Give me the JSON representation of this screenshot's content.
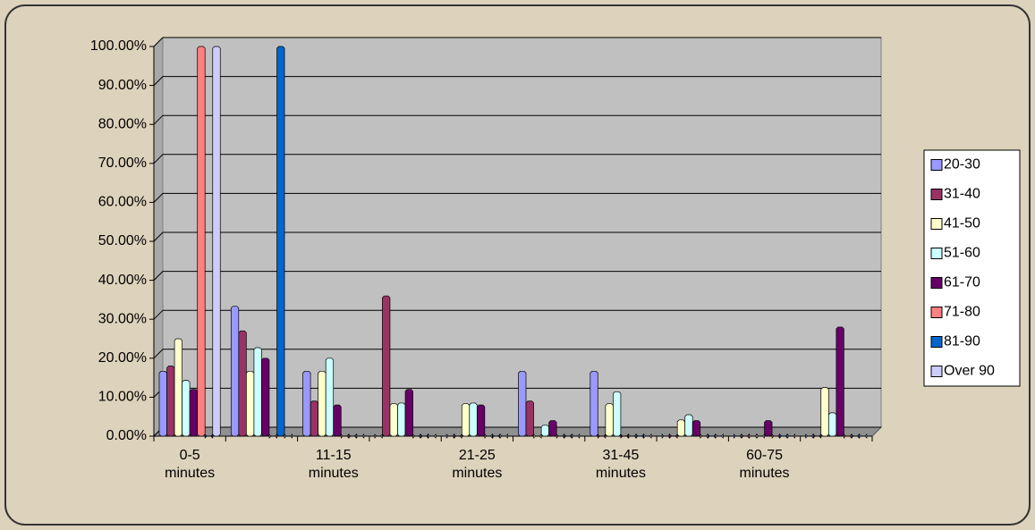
{
  "chart_data": {
    "type": "bar",
    "categories": [
      "0-5 minutes",
      null,
      "11-15 minutes",
      null,
      "21-25 minutes",
      null,
      "31-45 minutes",
      null,
      "60-75 minutes",
      null
    ],
    "series": [
      {
        "name": "20-30",
        "color": "#9999ff",
        "values": [
          16.67,
          33.33,
          16.67,
          0,
          0,
          16.67,
          16.67,
          0,
          0,
          0
        ]
      },
      {
        "name": "31-40",
        "color": "#993366",
        "values": [
          18,
          27,
          9,
          36,
          0,
          9,
          0,
          0,
          0,
          0
        ]
      },
      {
        "name": "41-50",
        "color": "#ffffcc",
        "values": [
          25,
          16.67,
          16.67,
          8.33,
          8.33,
          0,
          8.33,
          4.17,
          0,
          12.5
        ]
      },
      {
        "name": "51-60",
        "color": "#ccffff",
        "values": [
          14.3,
          22.7,
          20,
          8.5,
          8.5,
          2.8,
          11.4,
          5.5,
          0,
          6
        ]
      },
      {
        "name": "61-70",
        "color": "#660066",
        "values": [
          12,
          20,
          8,
          12,
          8,
          4,
          0,
          4,
          4,
          28
        ]
      },
      {
        "name": "71-80",
        "color": "#ff8080",
        "values": [
          100,
          0,
          0,
          0,
          0,
          0,
          0,
          0,
          0,
          0
        ]
      },
      {
        "name": "81-90",
        "color": "#0066cc",
        "values": [
          0,
          100,
          0,
          0,
          0,
          0,
          0,
          0,
          0,
          0
        ]
      },
      {
        "name": "Over 90",
        "color": "#ccccff",
        "values": [
          100,
          0,
          0,
          0,
          0,
          0,
          0,
          0,
          0,
          0
        ]
      }
    ],
    "ylim": [
      0,
      100
    ],
    "yticks": [
      {
        "value": 0,
        "label": "0.00%"
      },
      {
        "value": 10,
        "label": "10.00%"
      },
      {
        "value": 20,
        "label": "20.00%"
      },
      {
        "value": 30,
        "label": "30.00%"
      },
      {
        "value": 40,
        "label": "40.00%"
      },
      {
        "value": 50,
        "label": "50.00%"
      },
      {
        "value": 60,
        "label": "60.00%"
      },
      {
        "value": 70,
        "label": "70.00%"
      },
      {
        "value": 80,
        "label": "80.00%"
      },
      {
        "value": 90,
        "label": "90.00%"
      },
      {
        "value": 100,
        "label": "100.00%"
      }
    ],
    "grid": true,
    "legend": "right"
  }
}
